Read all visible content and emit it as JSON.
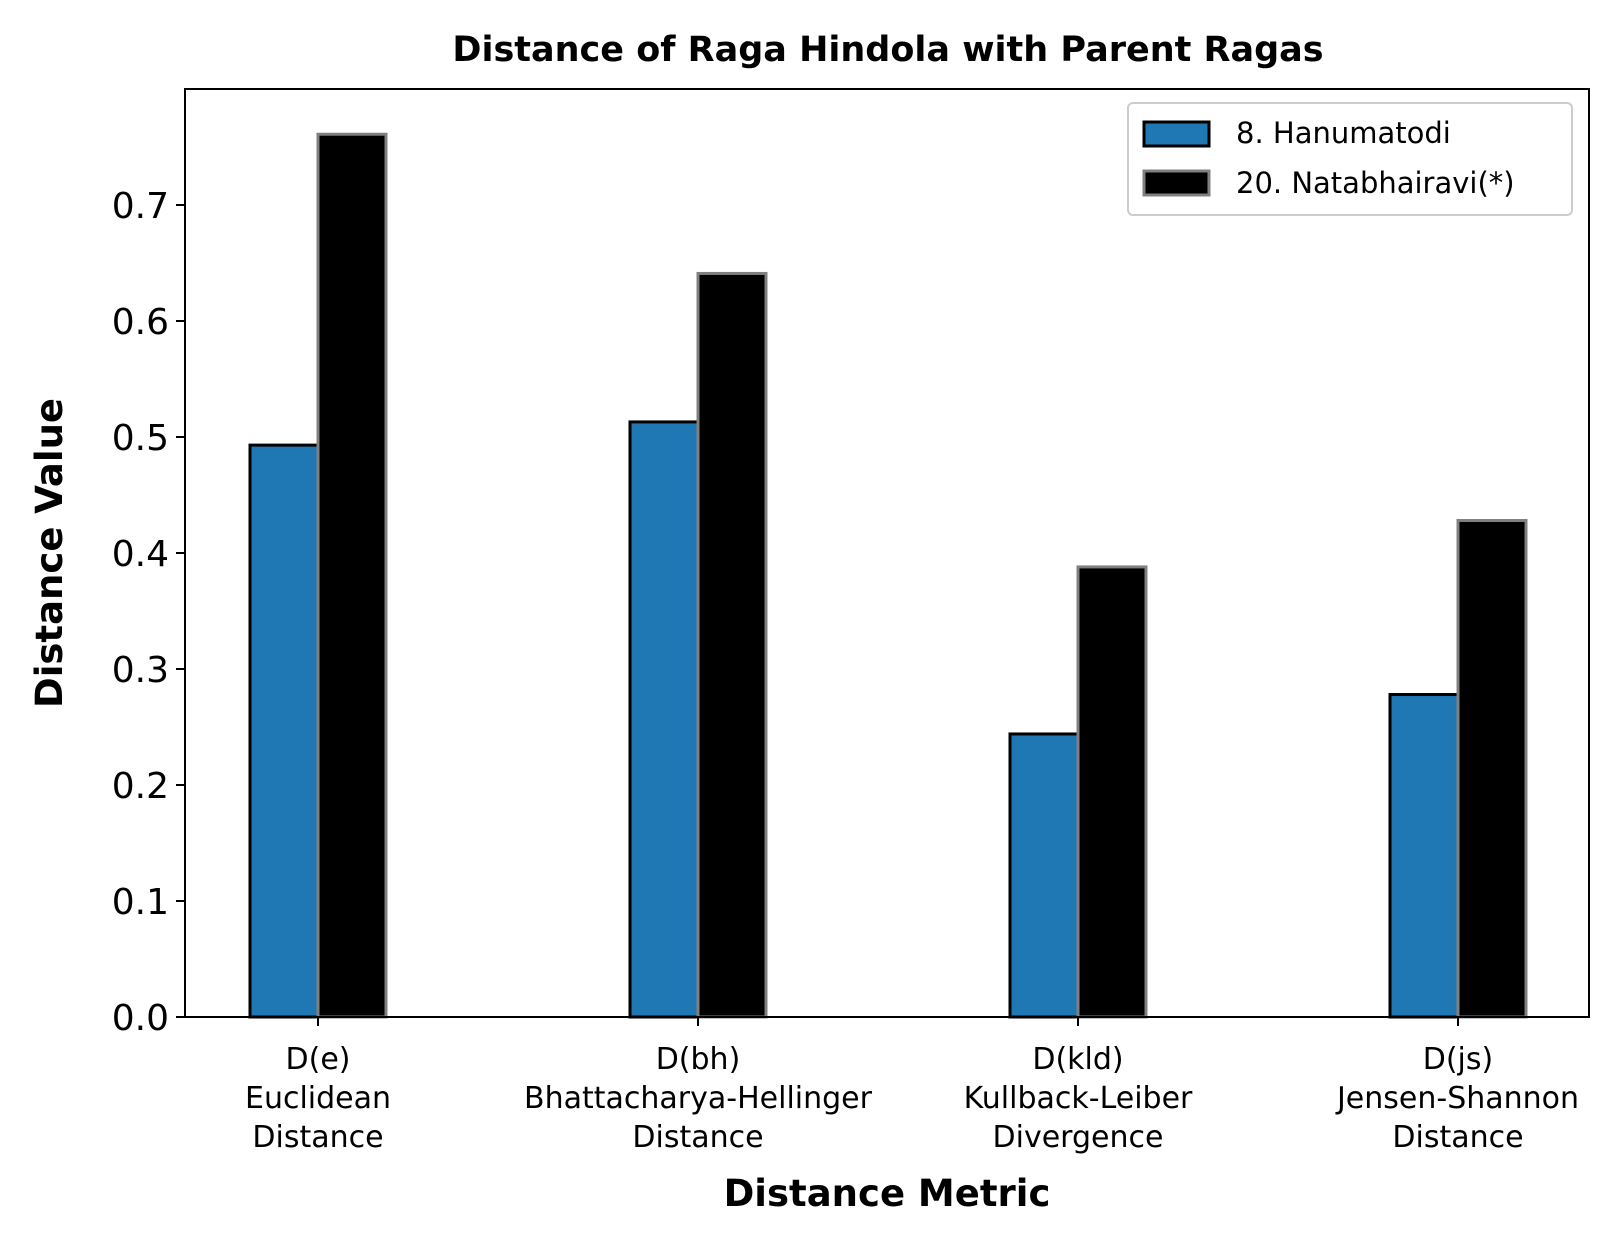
{
  "chart_data": {
    "type": "bar",
    "title": "Distance of Raga Hindola with Parent Ragas",
    "xlabel": "Distance Metric",
    "ylabel": "Distance Value",
    "categories": [
      [
        "D(e)",
        "Euclidean",
        "Distance"
      ],
      [
        "D(bh)",
        "Bhattacharya-Hellinger",
        "Distance"
      ],
      [
        "D(kld)",
        "Kullback-Leiber",
        "Divergence"
      ],
      [
        "D(js)",
        "Jensen-Shannon",
        "Distance"
      ]
    ],
    "series": [
      {
        "name": "8. Hanumatodi",
        "values": [
          0.493,
          0.513,
          0.244,
          0.278
        ],
        "color": "#1f77b4",
        "edge": "#000000"
      },
      {
        "name": "20. Natabhairavi(*)",
        "values": [
          0.761,
          0.641,
          0.388,
          0.428
        ],
        "color": "#000000",
        "edge": "#808080"
      }
    ],
    "yticks": [
      "0.0",
      "0.1",
      "0.2",
      "0.3",
      "0.4",
      "0.5",
      "0.6",
      "0.7"
    ],
    "ylim": [
      0,
      0.8
    ],
    "grid": false,
    "legend_position": "top-right"
  }
}
